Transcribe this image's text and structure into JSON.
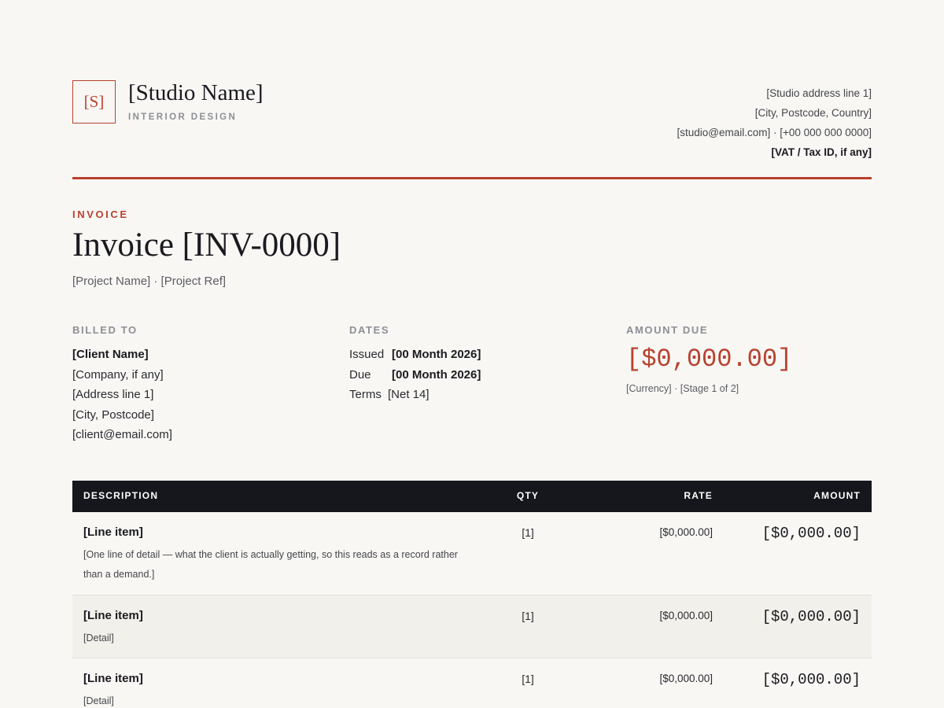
{
  "studio": {
    "logo_initial": "[S]",
    "name": "[Studio Name]",
    "tagline": "INTERIOR DESIGN",
    "address_line1": "[Studio address line 1]",
    "address_line2": "[City, Postcode, Country]",
    "contact": "[studio@email.com] · [+00 000 000 0000]",
    "tax_id": "[VAT / Tax ID, if any]"
  },
  "invoice": {
    "eyebrow": "INVOICE",
    "title": "Invoice [INV-0000]",
    "subtitle": "[Project Name] · [Project Ref]"
  },
  "billed_to": {
    "label": "BILLED TO",
    "name": "[Client Name]",
    "company": "[Company, if any]",
    "address_line1": "[Address line 1]",
    "city": "[City, Postcode]",
    "email": "[client@email.com]"
  },
  "dates": {
    "label": "DATES",
    "issued_label": "Issued",
    "issued_value": "[00 Month 2026]",
    "due_label": "Due",
    "due_value": "[00 Month 2026]",
    "terms_label": "Terms",
    "terms_value": "[Net 14]"
  },
  "amount_due": {
    "label": "AMOUNT DUE",
    "value": "[$0,000.00]",
    "sub": "[Currency] · [Stage 1 of 2]"
  },
  "table": {
    "headers": {
      "description": "DESCRIPTION",
      "qty": "QTY",
      "rate": "RATE",
      "amount": "AMOUNT"
    },
    "rows": [
      {
        "title": "[Line item]",
        "detail": "[One line of detail — what the client is actually getting, so this reads as a record rather than a demand.]",
        "qty": "[1]",
        "rate": "[$0,000.00]",
        "amount": "[$0,000.00]"
      },
      {
        "title": "[Line item]",
        "detail": "[Detail]",
        "qty": "[1]",
        "rate": "[$0,000.00]",
        "amount": "[$0,000.00]"
      },
      {
        "title": "[Line item]",
        "detail": "[Detail]",
        "qty": "[1]",
        "rate": "[$0,000.00]",
        "amount": "[$0,000.00]"
      }
    ]
  },
  "colors": {
    "accent": "#b8412e",
    "header_bg": "#16171c",
    "page_bg": "#f8f7f4"
  }
}
